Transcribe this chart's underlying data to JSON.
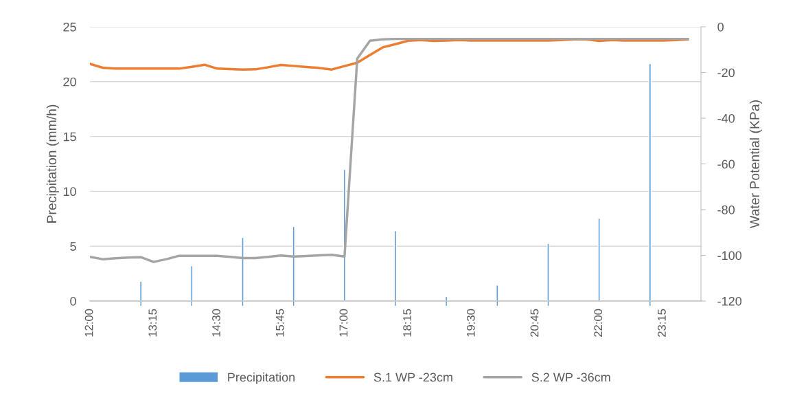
{
  "chart_data": {
    "type": "bar",
    "ylabel": "Precipitation (mm/h)",
    "y2label": "Water Potential (KPa)",
    "xlim": [
      12,
      24
    ],
    "xticks": [
      {
        "value": 12,
        "label": "12:00"
      },
      {
        "value": 13.25,
        "label": "13:15"
      },
      {
        "value": 14.5,
        "label": "14:30"
      },
      {
        "value": 15.75,
        "label": "15:45"
      },
      {
        "value": 17,
        "label": "17:00"
      },
      {
        "value": 18.25,
        "label": "18:15"
      },
      {
        "value": 19.5,
        "label": "19:30"
      },
      {
        "value": 20.75,
        "label": "20:45"
      },
      {
        "value": 22,
        "label": "22:00"
      },
      {
        "value": 23.25,
        "label": "23:15"
      },
      {
        "value": 13,
        "label": null
      },
      {
        "value": 14,
        "label": null
      },
      {
        "value": 15,
        "label": null
      },
      {
        "value": 16,
        "label": null
      },
      {
        "value": 18,
        "label": null
      },
      {
        "value": 19,
        "label": null
      },
      {
        "value": 20,
        "label": null
      },
      {
        "value": 21,
        "label": null
      },
      {
        "value": 23,
        "label": null
      }
    ],
    "ylim": [
      0,
      25
    ],
    "yticks": [
      0,
      5,
      10,
      15,
      20,
      25
    ],
    "y2lim": [
      -120,
      0
    ],
    "y2ticks": [
      -120,
      -100,
      -80,
      -60,
      -40,
      -20,
      0
    ],
    "grid": "y",
    "legend": "bottom",
    "series": [
      {
        "name": "Precipitation",
        "color": "#5b9bd5",
        "x": [
          13,
          14,
          15,
          16,
          17,
          18,
          19,
          20,
          21,
          22,
          23
        ],
        "values": [
          1.8,
          3.2,
          5.8,
          6.8,
          12.0,
          6.4,
          0.4,
          1.45,
          5.25,
          7.55,
          21.65
        ]
      },
      {
        "name": "S.1 WP -23cm",
        "type": "line",
        "axis": "y2",
        "color": "#ed7d31",
        "x": [
          12,
          12.25,
          12.5,
          12.75,
          13,
          13.25,
          13.5,
          13.75,
          14,
          14.25,
          14.5,
          14.75,
          15,
          15.25,
          15.5,
          15.75,
          16,
          16.25,
          16.5,
          16.75,
          17,
          17.25,
          17.5,
          17.75,
          18,
          18.25,
          18.5,
          18.75,
          19,
          19.25,
          19.5,
          19.75,
          20,
          20.25,
          20.5,
          20.75,
          21,
          21.25,
          21.5,
          21.75,
          22,
          22.25,
          22.5,
          22.75,
          23,
          23.25,
          23.5,
          23.75
        ],
        "values": [
          -16.2,
          -17.9,
          -18.3,
          -18.3,
          -18.3,
          -18.3,
          -18.3,
          -18.3,
          -17.5,
          -16.6,
          -18.3,
          -18.5,
          -18.7,
          -18.6,
          -17.7,
          -16.7,
          -17.1,
          -17.6,
          -18.0,
          -18.7,
          -17.2,
          -15.7,
          -12.3,
          -9.0,
          -7.6,
          -6.1,
          -5.8,
          -6.2,
          -6.0,
          -5.8,
          -6.0,
          -6.0,
          -6.0,
          -6.0,
          -6.0,
          -6.0,
          -6.0,
          -5.8,
          -5.5,
          -5.5,
          -6.2,
          -5.8,
          -6.0,
          -6.0,
          -6.0,
          -6.0,
          -5.8,
          -5.5
        ]
      },
      {
        "name": "S.2 WP -36cm",
        "type": "line",
        "axis": "y2",
        "color": "#a5a5a5",
        "x": [
          12,
          12.25,
          12.5,
          12.75,
          13,
          13.25,
          13.5,
          13.75,
          14,
          14.25,
          14.5,
          14.75,
          15,
          15.25,
          15.5,
          15.75,
          16,
          16.25,
          16.5,
          16.75,
          17,
          17.25,
          17.5,
          17.75,
          18,
          18.25,
          18.5,
          18.75,
          19,
          19.25,
          19.5,
          19.75,
          20,
          20.25,
          20.5,
          20.75,
          21,
          21.25,
          21.5,
          21.75,
          22,
          22.25,
          22.5,
          22.75,
          23,
          23.25,
          23.5,
          23.75
        ],
        "values": [
          -100.7,
          -101.7,
          -101.3,
          -101.0,
          -100.8,
          -102.9,
          -101.7,
          -100.2,
          -100.2,
          -100.2,
          -100.2,
          -100.7,
          -101.2,
          -101.2,
          -100.7,
          -100.1,
          -100.5,
          -100.3,
          -100.0,
          -99.8,
          -100.5,
          -13.9,
          -6.1,
          -5.5,
          -5.3,
          -5.3,
          -5.3,
          -5.3,
          -5.3,
          -5.3,
          -5.3,
          -5.3,
          -5.3,
          -5.3,
          -5.3,
          -5.3,
          -5.3,
          -5.3,
          -5.3,
          -5.3,
          -5.3,
          -5.3,
          -5.3,
          -5.3,
          -5.3,
          -5.3,
          -5.3,
          -5.3
        ]
      }
    ]
  }
}
